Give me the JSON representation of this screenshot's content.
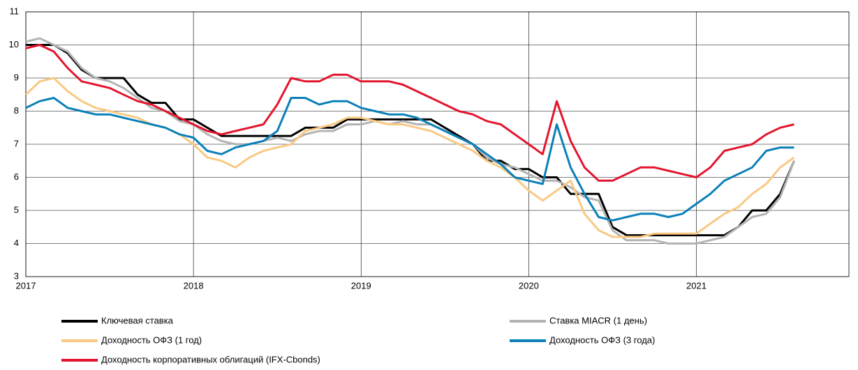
{
  "chart_data": {
    "type": "line",
    "x": [
      2017,
      2017.083,
      2017.167,
      2017.25,
      2017.333,
      2017.417,
      2017.5,
      2017.583,
      2017.667,
      2017.75,
      2017.833,
      2017.917,
      2018,
      2018.083,
      2018.167,
      2018.25,
      2018.333,
      2018.417,
      2018.5,
      2018.583,
      2018.667,
      2018.75,
      2018.833,
      2018.917,
      2019,
      2019.083,
      2019.167,
      2019.25,
      2019.333,
      2019.417,
      2019.5,
      2019.583,
      2019.667,
      2019.75,
      2019.833,
      2019.917,
      2020,
      2020.083,
      2020.167,
      2020.25,
      2020.333,
      2020.417,
      2020.5,
      2020.583,
      2020.667,
      2020.75,
      2020.833,
      2020.917,
      2021,
      2021.083,
      2021.167,
      2021.25,
      2021.333,
      2021.417,
      2021.5,
      2021.583
    ],
    "series": [
      {
        "name": "Ключевая ставка",
        "color": "#000000",
        "values": [
          10,
          10,
          10,
          9.75,
          9.25,
          9,
          9,
          9,
          8.5,
          8.25,
          8.25,
          7.75,
          7.75,
          7.5,
          7.25,
          7.25,
          7.25,
          7.25,
          7.25,
          7.25,
          7.5,
          7.5,
          7.5,
          7.75,
          7.75,
          7.75,
          7.75,
          7.75,
          7.75,
          7.75,
          7.5,
          7.25,
          7,
          6.5,
          6.5,
          6.25,
          6.25,
          6,
          6,
          5.5,
          5.5,
          5.5,
          4.5,
          4.25,
          4.25,
          4.25,
          4.25,
          4.25,
          4.25,
          4.25,
          4.25,
          4.5,
          5,
          5,
          5.5,
          6.5
        ]
      },
      {
        "name": "Ставка MIACR (1 день)",
        "color": "#b3b3b3",
        "values": [
          10.1,
          10.2,
          10,
          9.8,
          9.3,
          9,
          8.9,
          8.7,
          8.4,
          8.1,
          8,
          7.7,
          7.6,
          7.3,
          7.1,
          7,
          7,
          7.1,
          7.2,
          7.1,
          7.3,
          7.4,
          7.4,
          7.6,
          7.6,
          7.7,
          7.6,
          7.7,
          7.6,
          7.6,
          7.4,
          7.2,
          7,
          6.6,
          6.4,
          6.3,
          6.1,
          5.9,
          5.9,
          5.7,
          5.4,
          5.3,
          4.4,
          4.1,
          4.1,
          4.1,
          4,
          4,
          4,
          4.1,
          4.2,
          4.5,
          4.8,
          4.9,
          5.4,
          6.5
        ]
      },
      {
        "name": "Доходность ОФЗ (1 год)",
        "color": "#f9c982",
        "values": [
          8.5,
          8.9,
          9,
          8.6,
          8.3,
          8.1,
          8,
          7.9,
          7.8,
          7.6,
          7.5,
          7.3,
          7,
          6.6,
          6.5,
          6.3,
          6.6,
          6.8,
          6.9,
          7,
          7.4,
          7.5,
          7.6,
          7.8,
          7.8,
          7.7,
          7.6,
          7.6,
          7.5,
          7.4,
          7.2,
          7,
          6.8,
          6.5,
          6.3,
          6,
          5.6,
          5.3,
          5.6,
          5.9,
          4.9,
          4.4,
          4.2,
          4.2,
          4.2,
          4.3,
          4.3,
          4.3,
          4.3,
          4.6,
          4.9,
          5.1,
          5.5,
          5.8,
          6.3,
          6.6
        ]
      },
      {
        "name": "Доходность ОФЗ (3 года)",
        "color": "#0a80b8",
        "values": [
          8.1,
          8.3,
          8.4,
          8.1,
          8,
          7.9,
          7.9,
          7.8,
          7.7,
          7.6,
          7.5,
          7.3,
          7.2,
          6.8,
          6.7,
          6.9,
          7,
          7.1,
          7.4,
          8.4,
          8.4,
          8.2,
          8.3,
          8.3,
          8.1,
          8,
          7.9,
          7.9,
          7.8,
          7.6,
          7.4,
          7.2,
          7,
          6.7,
          6.4,
          6,
          5.9,
          5.8,
          7.6,
          6.3,
          5.5,
          4.8,
          4.7,
          4.8,
          4.9,
          4.9,
          4.8,
          4.9,
          5.2,
          5.5,
          5.9,
          6.1,
          6.3,
          6.8,
          6.9,
          6.9
        ]
      },
      {
        "name": "Доходность корпоративных облигаций (IFX-Cbonds)",
        "color": "#e3152d",
        "values": [
          9.9,
          10,
          9.8,
          9.3,
          8.9,
          8.8,
          8.7,
          8.5,
          8.3,
          8.2,
          8,
          7.8,
          7.6,
          7.4,
          7.3,
          7.4,
          7.5,
          7.6,
          8.2,
          9,
          8.9,
          8.9,
          9.1,
          9.1,
          8.9,
          8.9,
          8.9,
          8.8,
          8.6,
          8.4,
          8.2,
          8,
          7.9,
          7.7,
          7.6,
          7.3,
          7,
          6.7,
          8.3,
          7.1,
          6.3,
          5.9,
          5.9,
          6.1,
          6.3,
          6.3,
          6.2,
          6.1,
          6,
          6.3,
          6.8,
          6.9,
          7,
          7.3,
          7.5,
          7.6
        ]
      }
    ],
    "xlim": [
      2017,
      2021.91
    ],
    "xticks": [
      2017,
      2018,
      2019,
      2020,
      2021
    ],
    "ylim": [
      3,
      11
    ],
    "yticks": [
      3,
      4,
      5,
      6,
      7,
      8,
      9,
      10,
      11
    ],
    "grid": true
  }
}
